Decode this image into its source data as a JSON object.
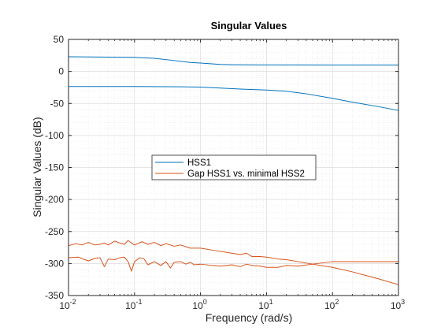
{
  "chart_data": {
    "type": "line",
    "title": "Singular Values",
    "xlabel": "Frequency (rad/s)",
    "ylabel": "Singular Values (dB)",
    "xscale": "log",
    "xlim": [
      0.01,
      1000
    ],
    "ylim": [
      -350,
      50
    ],
    "grid": "on (major and minor)",
    "legend_placement": "center-left",
    "x_ticks": [
      {
        "base": "10",
        "exp": "-2"
      },
      {
        "base": "10",
        "exp": "-1"
      },
      {
        "base": "10",
        "exp": "0"
      },
      {
        "base": "10",
        "exp": "1"
      },
      {
        "base": "10",
        "exp": "2"
      },
      {
        "base": "10",
        "exp": "3"
      }
    ],
    "y_ticks": [
      "50",
      "0",
      "-50",
      "-100",
      "-150",
      "-200",
      "-250",
      "-300",
      "-350"
    ],
    "series": [
      {
        "name": "HSS1",
        "color": "#0072BD",
        "curves": [
          [
            [
              0.01,
              23
            ],
            [
              0.03,
              22.5
            ],
            [
              0.1,
              22
            ],
            [
              0.2,
              20.5
            ],
            [
              0.4,
              17
            ],
            [
              0.7,
              14
            ],
            [
              1,
              13
            ],
            [
              2,
              11
            ],
            [
              3,
              10.5
            ],
            [
              10,
              10.2
            ],
            [
              100,
              10
            ],
            [
              1000,
              10
            ]
          ],
          [
            [
              0.01,
              -23.5
            ],
            [
              0.1,
              -23.5
            ],
            [
              0.5,
              -24
            ],
            [
              1,
              -24.5
            ],
            [
              2,
              -26
            ],
            [
              4,
              -27.5
            ],
            [
              10,
              -29
            ],
            [
              20,
              -31
            ],
            [
              40,
              -35
            ],
            [
              100,
              -42
            ],
            [
              200,
              -48
            ],
            [
              500,
              -55
            ],
            [
              1000,
              -61
            ]
          ]
        ]
      },
      {
        "name": "Gap HSS1 vs. minimal HSS2",
        "color": "#D95319",
        "curves": [
          [
            [
              0.01,
              -272
            ],
            [
              0.013,
              -269
            ],
            [
              0.016,
              -271
            ],
            [
              0.02,
              -267
            ],
            [
              0.025,
              -271
            ],
            [
              0.03,
              -270
            ],
            [
              0.035,
              -268
            ],
            [
              0.04,
              -271
            ],
            [
              0.05,
              -265
            ],
            [
              0.06,
              -268
            ],
            [
              0.07,
              -270
            ],
            [
              0.08,
              -264
            ],
            [
              0.09,
              -268
            ],
            [
              0.1,
              -271
            ],
            [
              0.13,
              -266
            ],
            [
              0.16,
              -270
            ],
            [
              0.2,
              -267
            ],
            [
              0.25,
              -272
            ],
            [
              0.3,
              -269
            ],
            [
              0.4,
              -273
            ],
            [
              0.5,
              -271
            ],
            [
              0.7,
              -276
            ],
            [
              1,
              -276
            ],
            [
              1.5,
              -279
            ],
            [
              2,
              -281
            ],
            [
              3,
              -284
            ],
            [
              4,
              -286
            ],
            [
              5,
              -284
            ],
            [
              6,
              -289
            ],
            [
              8,
              -289
            ],
            [
              10,
              -290
            ],
            [
              15,
              -293
            ],
            [
              20,
              -294
            ],
            [
              30,
              -297
            ],
            [
              50,
              -301
            ],
            [
              100,
              -306
            ],
            [
              200,
              -313
            ],
            [
              500,
              -324
            ],
            [
              1000,
              -333
            ]
          ],
          [
            [
              0.01,
              -291
            ],
            [
              0.014,
              -290
            ],
            [
              0.02,
              -296
            ],
            [
              0.025,
              -292
            ],
            [
              0.03,
              -291
            ],
            [
              0.035,
              -305
            ],
            [
              0.04,
              -293
            ],
            [
              0.05,
              -294
            ],
            [
              0.06,
              -291
            ],
            [
              0.07,
              -290
            ],
            [
              0.08,
              -297
            ],
            [
              0.09,
              -312
            ],
            [
              0.1,
              -297
            ],
            [
              0.12,
              -291
            ],
            [
              0.14,
              -293
            ],
            [
              0.16,
              -302
            ],
            [
              0.2,
              -297
            ],
            [
              0.25,
              -303
            ],
            [
              0.3,
              -297
            ],
            [
              0.35,
              -307
            ],
            [
              0.4,
              -298
            ],
            [
              0.5,
              -297
            ],
            [
              0.6,
              -301
            ],
            [
              0.7,
              -298
            ],
            [
              0.8,
              -302
            ],
            [
              1,
              -301
            ],
            [
              1.5,
              -303
            ],
            [
              2,
              -304
            ],
            [
              3,
              -302
            ],
            [
              4,
              -305
            ],
            [
              5,
              -301
            ],
            [
              6,
              -303
            ],
            [
              8,
              -304
            ],
            [
              10,
              -306
            ],
            [
              15,
              -306
            ],
            [
              20,
              -303
            ],
            [
              30,
              -304
            ],
            [
              50,
              -301
            ],
            [
              70,
              -299
            ],
            [
              100,
              -297
            ],
            [
              300,
              -297
            ],
            [
              1000,
              -297
            ]
          ]
        ]
      }
    ]
  }
}
